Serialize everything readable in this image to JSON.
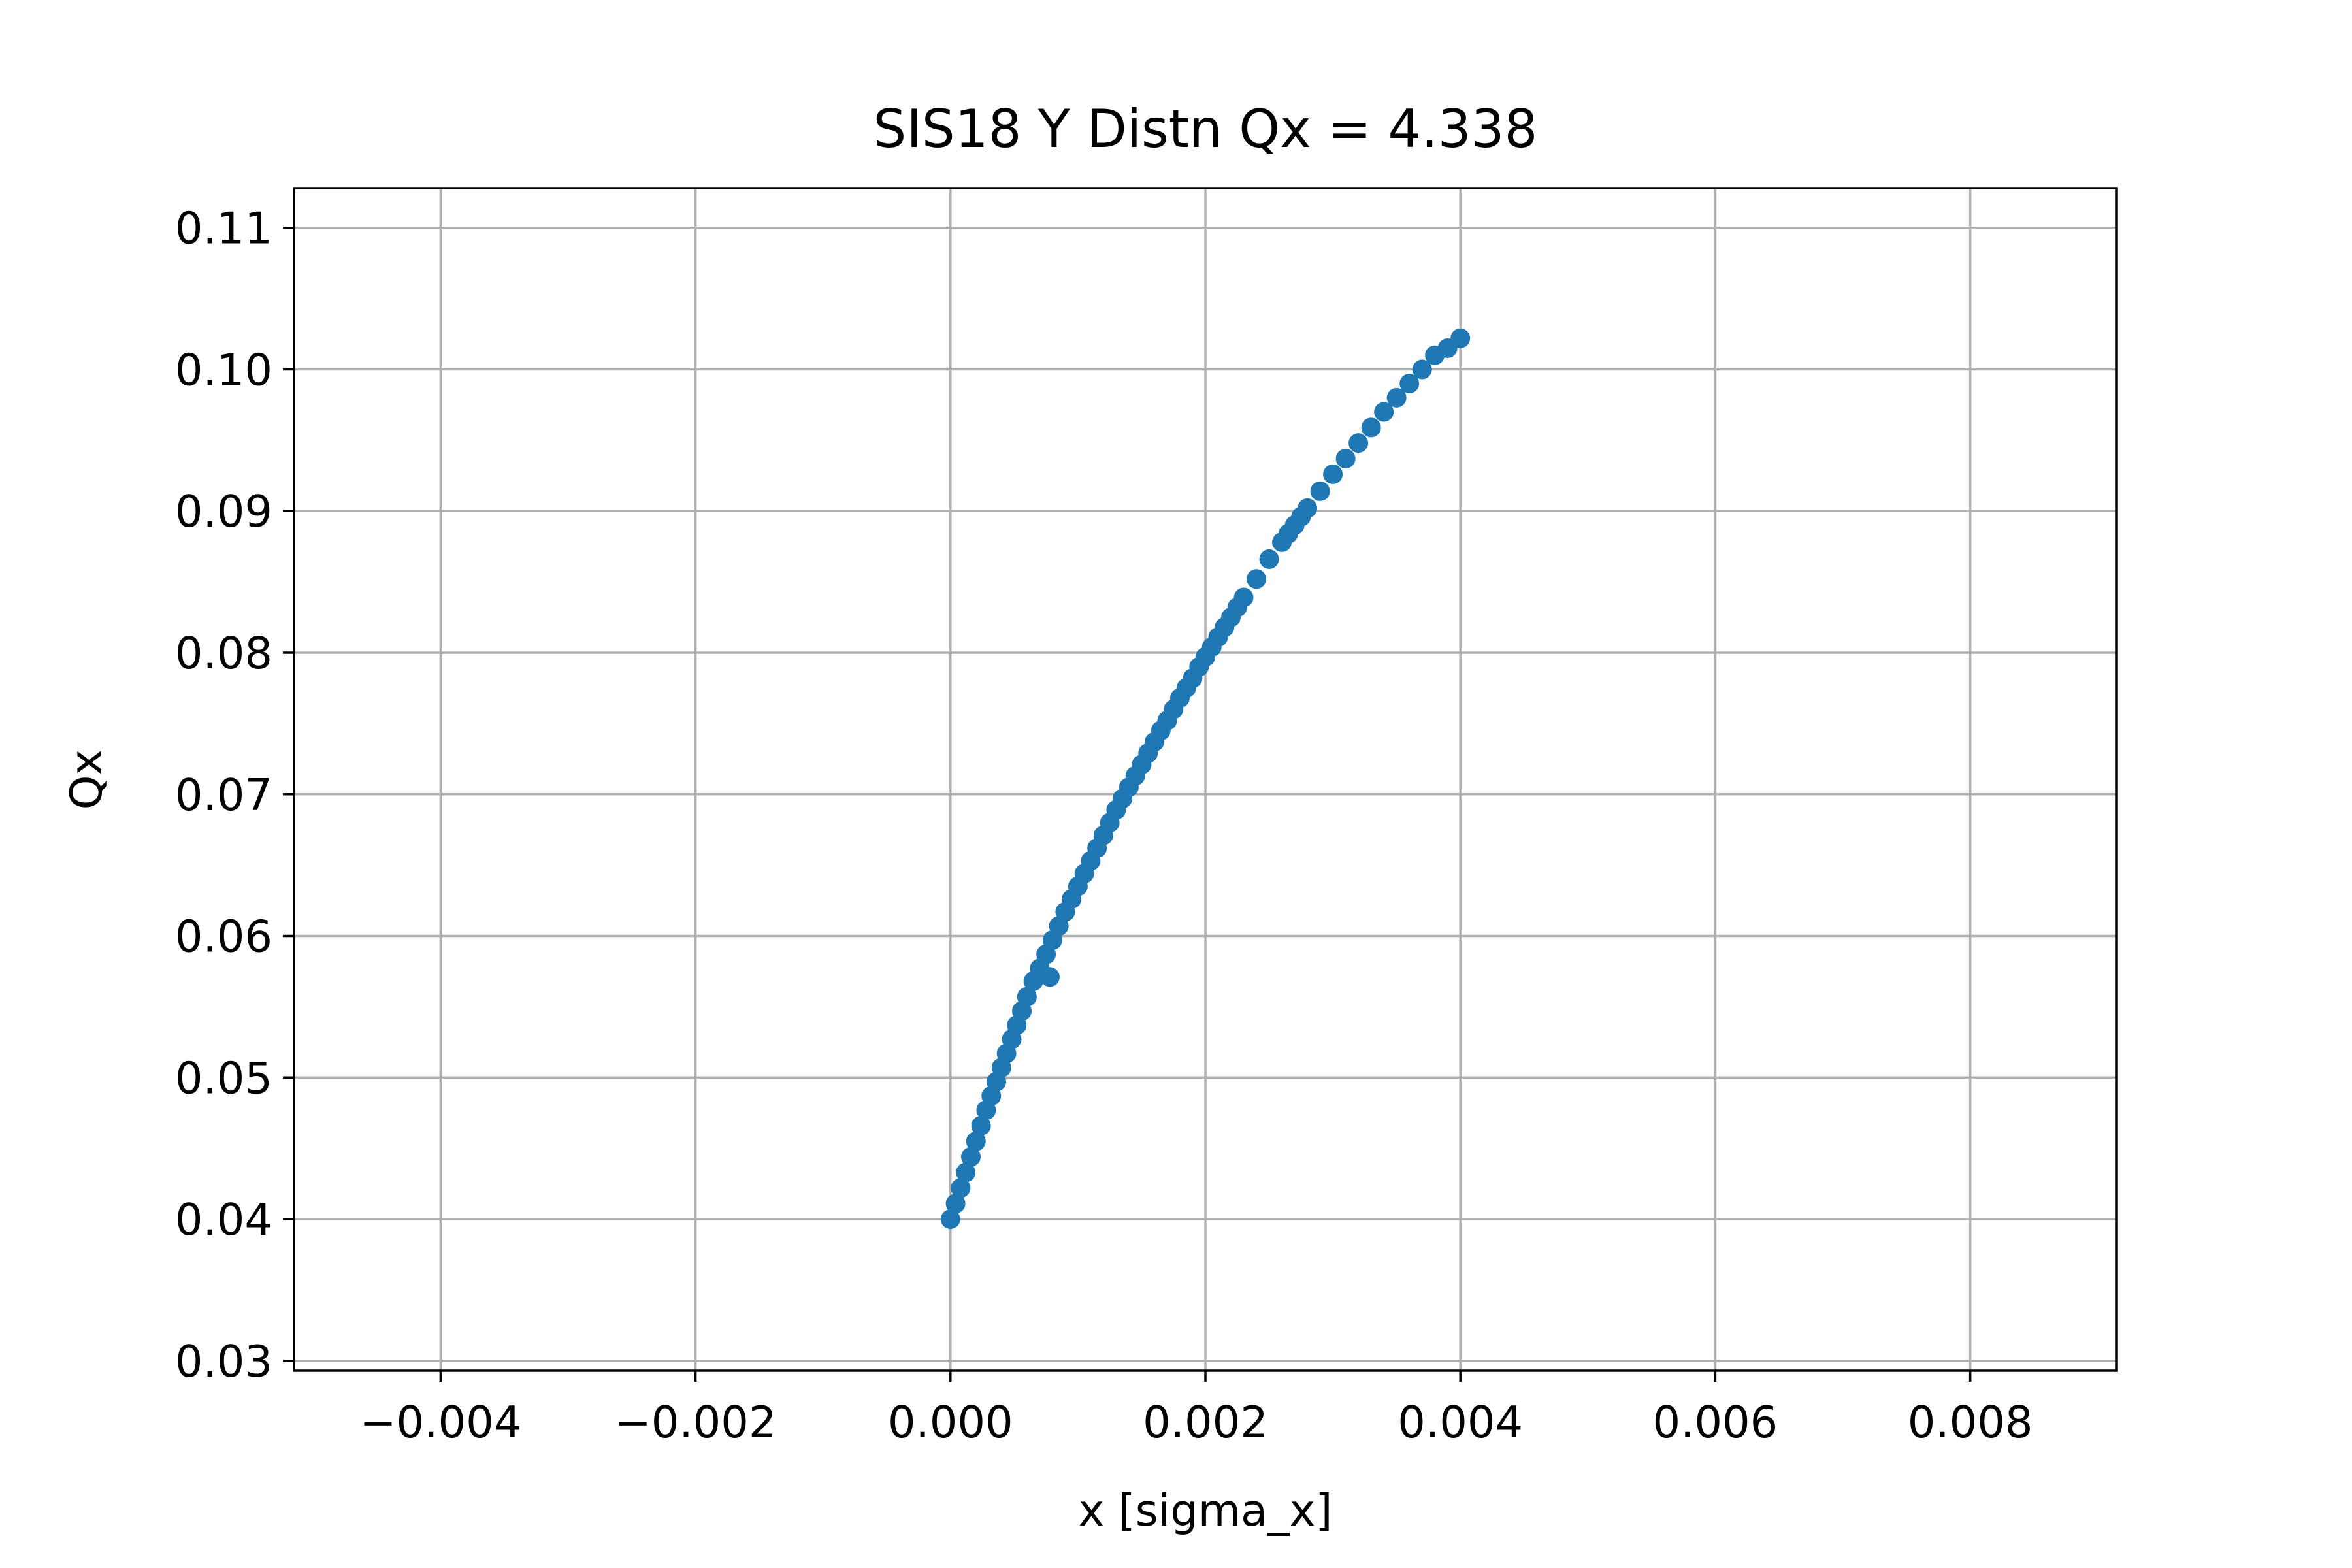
{
  "chart_data": {
    "type": "scatter",
    "title": "SIS18 Y Distn Qx = 4.338",
    "xlabel": "x [sigma_x]",
    "ylabel": "Qx",
    "xlim": [
      -0.00515,
      0.00915
    ],
    "ylim": [
      0.0293,
      0.1128
    ],
    "xticks": [
      -0.004,
      -0.002,
      0.0,
      0.002,
      0.004,
      0.006,
      0.008
    ],
    "xtick_labels": [
      "−0.004",
      "−0.002",
      "0.000",
      "0.002",
      "0.004",
      "0.006",
      "0.008"
    ],
    "yticks": [
      0.03,
      0.04,
      0.05,
      0.06,
      0.07,
      0.08,
      0.09,
      0.1,
      0.11
    ],
    "ytick_labels": [
      "0.03",
      "0.04",
      "0.05",
      "0.06",
      "0.07",
      "0.08",
      "0.09",
      "0.10",
      "0.11"
    ],
    "grid": true,
    "marker_color": "#1f77b4",
    "series": [
      {
        "x": [
          0.0,
          4e-05,
          8e-05,
          0.00012,
          0.00016,
          0.0002,
          0.00024,
          0.00028,
          0.00032,
          0.00036,
          0.0004,
          0.00044,
          0.00048,
          0.00052,
          0.00056,
          0.0006,
          0.00065,
          0.0007,
          0.00075,
          0.0008,
          0.00085,
          0.0009,
          0.00095,
          0.001,
          0.00105,
          0.0011,
          0.00115,
          0.0012,
          0.00125,
          0.0013,
          0.00135,
          0.0014,
          0.00145,
          0.0015,
          0.00155,
          0.0016,
          0.00165,
          0.0017,
          0.00175,
          0.0018,
          0.00185,
          0.0019,
          0.00195,
          0.002,
          0.00205,
          0.0021,
          0.00215,
          0.0022,
          0.00225,
          0.0023,
          0.0024,
          0.0025,
          0.0026,
          0.00265,
          0.0027,
          0.00275,
          0.0028,
          0.0029,
          0.003,
          0.0031,
          0.0032,
          0.0033,
          0.0034,
          0.0035,
          0.0036,
          0.0037,
          0.0038,
          0.0039,
          0.004,
          0.00078
        ],
        "y": [
          0.04,
          0.0411,
          0.0422,
          0.0433,
          0.0444,
          0.0455,
          0.0466,
          0.0477,
          0.0487,
          0.0497,
          0.0507,
          0.0517,
          0.0527,
          0.0537,
          0.0547,
          0.0557,
          0.0568,
          0.0577,
          0.0587,
          0.0597,
          0.0607,
          0.0617,
          0.0626,
          0.0635,
          0.0644,
          0.0653,
          0.0662,
          0.0671,
          0.068,
          0.0689,
          0.0697,
          0.0705,
          0.0713,
          0.0721,
          0.0729,
          0.0737,
          0.0745,
          0.0752,
          0.076,
          0.0768,
          0.0775,
          0.0782,
          0.079,
          0.0797,
          0.0804,
          0.0811,
          0.0818,
          0.0825,
          0.0832,
          0.0839,
          0.0852,
          0.0866,
          0.0878,
          0.0884,
          0.089,
          0.0896,
          0.0902,
          0.0914,
          0.0926,
          0.0937,
          0.0948,
          0.0959,
          0.097,
          0.098,
          0.099,
          0.1,
          0.101,
          0.1015,
          0.1022,
          0.0571
        ]
      }
    ]
  }
}
